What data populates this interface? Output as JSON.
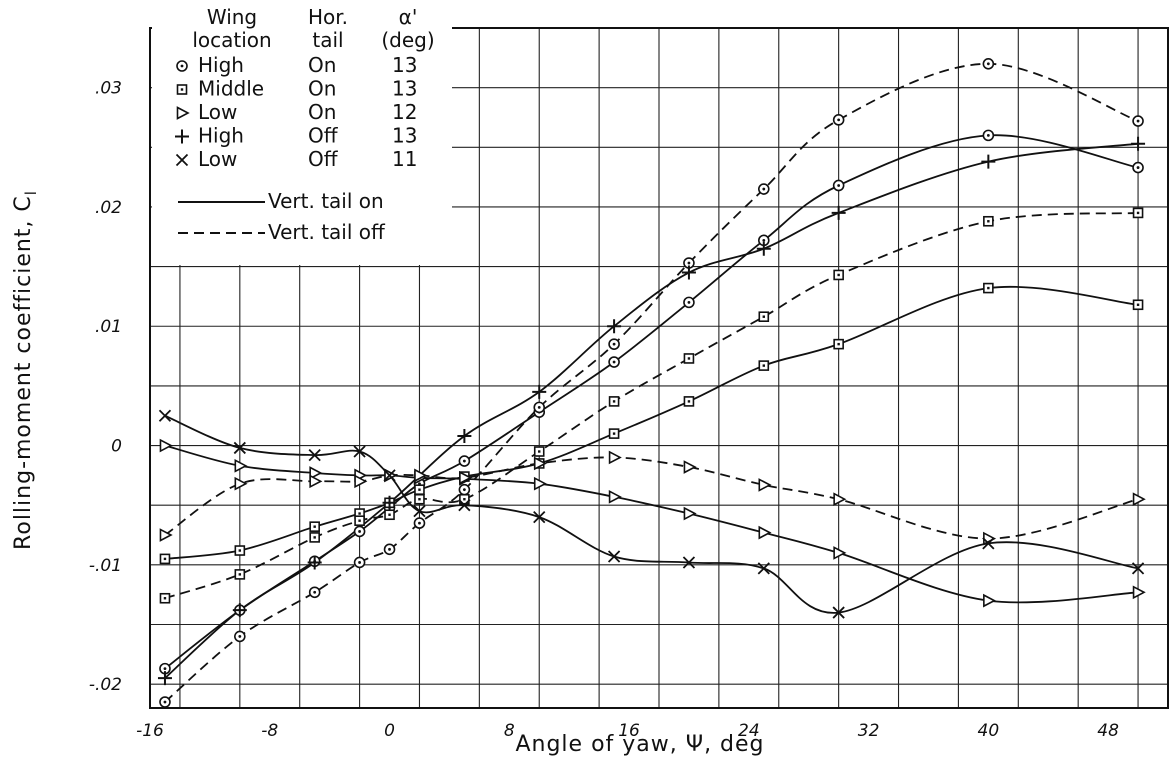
{
  "chart_data": {
    "type": "line",
    "title": "",
    "xlabel": "Angle of yaw, Ψ, deg",
    "ylabel": "Rolling-moment coefficient, C",
    "ylabel_subscript": "l",
    "xlim": [
      -16,
      52
    ],
    "ylim": [
      -0.022,
      0.035
    ],
    "x_ticks": [
      -16,
      -8,
      0,
      8,
      16,
      24,
      32,
      40,
      48
    ],
    "x_tick_labels": [
      "-16",
      "-8",
      "0",
      "8",
      "16",
      "24",
      "32",
      "40",
      "48"
    ],
    "y_ticks": [
      0.03,
      0.02,
      0.01,
      0,
      -0.01,
      -0.02
    ],
    "y_tick_labels": [
      ".03",
      ".02",
      ".01",
      "0",
      "-.01",
      "-.02"
    ],
    "grid": true,
    "legend_position": "top-left",
    "legend": {
      "header": {
        "col1": [
          "Wing",
          "location"
        ],
        "col2": [
          "Hor.",
          "tail"
        ],
        "col3": [
          "α'",
          "(deg)"
        ]
      },
      "entries": [
        {
          "symbol": "⊙",
          "wing": "High",
          "tail": "On",
          "alpha": "13"
        },
        {
          "symbol": "⊡",
          "wing": "Middle",
          "tail": "On",
          "alpha": "13"
        },
        {
          "symbol": "▷",
          "wing": "Low",
          "tail": "On",
          "alpha": "12"
        },
        {
          "symbol": "+",
          "wing": "High",
          "tail": "Off",
          "alpha": "13"
        },
        {
          "symbol": "×",
          "wing": "Low",
          "tail": "Off",
          "alpha": "11"
        }
      ],
      "line_styles": [
        {
          "style": "solid",
          "label": "Vert. tail on"
        },
        {
          "style": "dashed",
          "label": "Vert. tail off"
        }
      ]
    },
    "series": [
      {
        "marker": "circle",
        "dash": false,
        "x": [
          -15,
          -10,
          -5,
          -2,
          0,
          2,
          5,
          10,
          15,
          20,
          25,
          30,
          40,
          50
        ],
        "y": [
          -0.0187,
          -0.0138,
          -0.0097,
          -0.0072,
          -0.0052,
          -0.0032,
          -0.0013,
          0.0028,
          0.007,
          0.012,
          0.0172,
          0.0218,
          0.026,
          0.0233
        ]
      },
      {
        "marker": "circle",
        "dash": true,
        "x": [
          -15,
          -10,
          -5,
          -2,
          0,
          2,
          5,
          10,
          15,
          20,
          25,
          30,
          40,
          50
        ],
        "y": [
          -0.0215,
          -0.016,
          -0.0123,
          -0.0098,
          -0.0087,
          -0.0065,
          -0.0037,
          0.0032,
          0.0085,
          0.0153,
          0.0215,
          0.0273,
          0.032,
          0.0272
        ]
      },
      {
        "marker": "square",
        "dash": false,
        "x": [
          -15,
          -10,
          -5,
          -2,
          0,
          2,
          5,
          10,
          15,
          20,
          25,
          30,
          40,
          50
        ],
        "y": [
          -0.0095,
          -0.0088,
          -0.0068,
          -0.0057,
          -0.0048,
          -0.0037,
          -0.0026,
          -0.0015,
          0.001,
          0.0037,
          0.0067,
          0.0085,
          0.0132,
          0.0118
        ]
      },
      {
        "marker": "square",
        "dash": true,
        "x": [
          -15,
          -10,
          -5,
          -2,
          0,
          2,
          5,
          10,
          15,
          20,
          25,
          30,
          40,
          50
        ],
        "y": [
          -0.0128,
          -0.0108,
          -0.0077,
          -0.0063,
          -0.0058,
          -0.0045,
          -0.0045,
          -0.0005,
          0.0037,
          0.0073,
          0.0108,
          0.0143,
          0.0188,
          0.0195
        ]
      },
      {
        "marker": "triangle",
        "dash": false,
        "x": [
          -15,
          -10,
          -5,
          -2,
          0,
          2,
          5,
          10,
          15,
          20,
          25,
          30,
          40,
          50
        ],
        "y": [
          0.0,
          -0.0017,
          -0.0023,
          -0.0025,
          -0.0025,
          -0.0027,
          -0.0028,
          -0.0032,
          -0.0043,
          -0.0057,
          -0.0073,
          -0.009,
          -0.013,
          -0.0123
        ]
      },
      {
        "marker": "triangle",
        "dash": true,
        "x": [
          -15,
          -10,
          -5,
          -2,
          0,
          2,
          5,
          10,
          15,
          20,
          25,
          30,
          40,
          50
        ],
        "y": [
          -0.0075,
          -0.0032,
          -0.003,
          -0.003,
          -0.0025,
          -0.0025,
          -0.0027,
          -0.0015,
          -0.001,
          -0.0018,
          -0.0033,
          -0.0045,
          -0.0078,
          -0.0045
        ]
      },
      {
        "marker": "plus",
        "dash": false,
        "x": [
          -15,
          -10,
          -5,
          0,
          5,
          10,
          15,
          20,
          25,
          30,
          40,
          50
        ],
        "y": [
          -0.0195,
          -0.0138,
          -0.0098,
          -0.0048,
          0.0008,
          0.0045,
          0.01,
          0.0145,
          0.0165,
          0.0195,
          0.0238,
          0.0253
        ]
      },
      {
        "marker": "x",
        "dash": false,
        "x": [
          -15,
          -10,
          -5,
          -2,
          0,
          2,
          5,
          10,
          15,
          20,
          25,
          30,
          40,
          50
        ],
        "y": [
          0.0025,
          -0.0002,
          -0.0008,
          -0.0005,
          -0.0025,
          -0.0055,
          -0.005,
          -0.006,
          -0.0093,
          -0.0098,
          -0.0103,
          -0.014,
          -0.0082,
          -0.0103
        ]
      }
    ]
  }
}
